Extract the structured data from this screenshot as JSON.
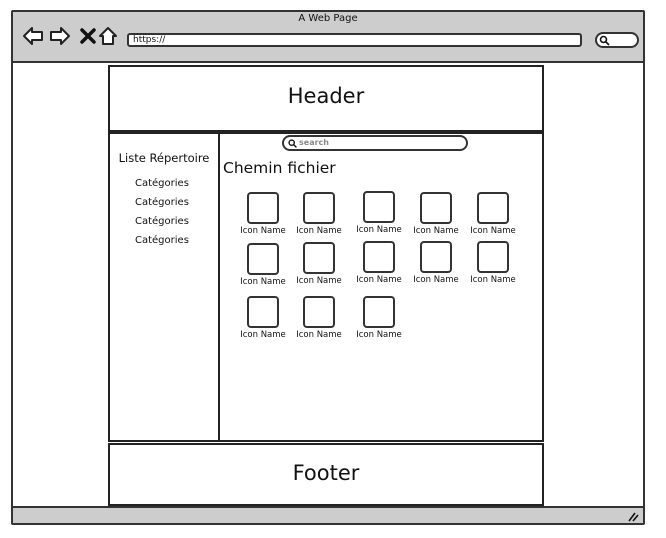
{
  "browser": {
    "title": "A Web Page",
    "url": "https://",
    "nav_icons": [
      "back-icon",
      "forward-icon",
      "stop-icon",
      "home-icon"
    ]
  },
  "header": {
    "label": "Header"
  },
  "footer": {
    "label": "Footer"
  },
  "sidebar": {
    "title": "Liste Répertoire",
    "items": [
      "Catégories",
      "Catégories",
      "Catégories",
      "Catégories"
    ]
  },
  "main": {
    "search_placeholder": "search",
    "path_title": "Chemin fichier",
    "icons": [
      "Icon Name",
      "Icon Name",
      "Icon Name",
      "Icon Name",
      "Icon Name",
      "Icon Name",
      "Icon Name",
      "Icon Name",
      "Icon Name",
      "Icon Name",
      "Icon Name",
      "Icon Name",
      "Icon Name"
    ]
  }
}
